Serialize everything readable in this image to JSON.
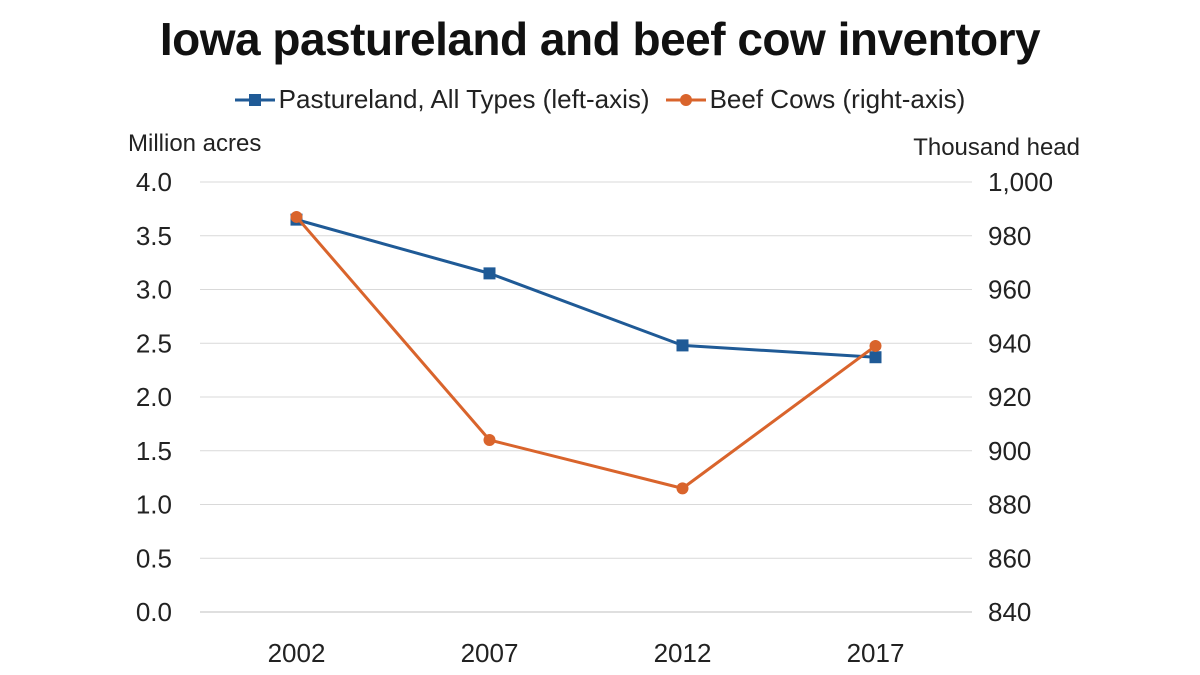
{
  "chart_data": {
    "type": "line",
    "title": "Iowa pastureland and beef cow inventory",
    "y_left_label": "Million acres",
    "y_right_label": "Thousand head",
    "categories": [
      "2002",
      "2007",
      "2012",
      "2017"
    ],
    "y_left": {
      "range": [
        0,
        4.0
      ],
      "ticks": [
        "0.0",
        "0.5",
        "1.0",
        "1.5",
        "2.0",
        "2.5",
        "3.0",
        "3.5",
        "4.0"
      ]
    },
    "y_right": {
      "range": [
        840,
        1000
      ],
      "ticks": [
        "840",
        "860",
        "880",
        "900",
        "920",
        "940",
        "960",
        "980",
        "1,000"
      ]
    },
    "series": [
      {
        "name": "Pastureland, All Types (left-axis)",
        "axis": "left",
        "marker": "square",
        "color": "#1f5a96",
        "values": [
          3.65,
          3.15,
          2.48,
          2.37
        ]
      },
      {
        "name": "Beef Cows (right-axis)",
        "axis": "right",
        "marker": "circle",
        "color": "#d9642c",
        "values": [
          987,
          904,
          886,
          939
        ]
      }
    ],
    "grid": true,
    "legend_position": "top-center"
  }
}
